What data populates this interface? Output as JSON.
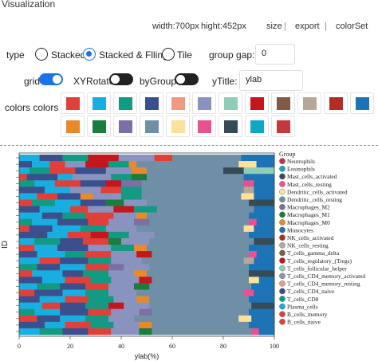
{
  "panel": {
    "title": "Visualization",
    "width_label": "width:700px",
    "height_label": "hight:452px",
    "size_label": "size",
    "export_label": "export",
    "colorset_label": "colorSet",
    "separator": "|"
  },
  "controls": {
    "type_label": "type",
    "type_options": [
      "Stacked",
      "Stacked & Flling",
      "Tile"
    ],
    "type_selected": "Stacked & Flling",
    "group_gap_label": "group gap:",
    "group_gap_value": "0",
    "grid_label": "grid",
    "grid_on": true,
    "xyrotate_label": "XYRotate",
    "xyrotate_on": false,
    "bygroup_label": "byGroup",
    "bygroup_on": false,
    "ytitle_label": "yTitle:",
    "ytitle_value": "ylab",
    "colors_label": "colors colors"
  },
  "palette": [
    "#e0403a",
    "#18aee0",
    "#139a82",
    "#3b4f8c",
    "#ef9a80",
    "#8a93c0",
    "#8fcdb8",
    "#c4161d",
    "#7e5c45",
    "#b6a899",
    "#b22d27",
    "#1c73b6",
    "#e8892b",
    "#1a7d3d",
    "#7c6fa6",
    "#6e8fa6",
    "#fde09a",
    "#e75391",
    "#354b57",
    "#10a7c2",
    "#c4393f"
  ],
  "chart_data": {
    "type": "bar",
    "orientation": "horizontal",
    "stacked": "percent",
    "xlabel": "ylab(%)",
    "ylabel": "ID",
    "xlim": [
      0,
      100
    ],
    "xticks": [
      "0",
      "20",
      "40",
      "60",
      "80",
      "100"
    ],
    "grid": false,
    "legend_title": "Group",
    "legend_position": "right",
    "series": [
      {
        "name": "Neutrophils",
        "color": "#c4393f"
      },
      {
        "name": "Eosinophils",
        "color": "#10a7c2"
      },
      {
        "name": "Mast_cells_activated",
        "color": "#354b57"
      },
      {
        "name": "Mast_cells_resting",
        "color": "#e75391"
      },
      {
        "name": "Dendritic_cells_activated",
        "color": "#fde09a"
      },
      {
        "name": "Dendritic_cells_resting",
        "color": "#6e8fa6"
      },
      {
        "name": "Macrophages_M2",
        "color": "#7c6fa6"
      },
      {
        "name": "Macrophages_M1",
        "color": "#1a7d3d"
      },
      {
        "name": "Macrophages_M0",
        "color": "#e8892b"
      },
      {
        "name": "Monocytes",
        "color": "#1c73b6"
      },
      {
        "name": "NK_cells_activated",
        "color": "#b22d27"
      },
      {
        "name": "NK_cells_resting",
        "color": "#b6a899"
      },
      {
        "name": "T_cells_gamma_delta",
        "color": "#7e5c45"
      },
      {
        "name": "T_cells_regulatory_(Tregs)",
        "color": "#c4161d"
      },
      {
        "name": "T_cells_follicular_helper",
        "color": "#8fcdb8"
      },
      {
        "name": "T_cells_CD4_memory_activated",
        "color": "#8a93c0"
      },
      {
        "name": "T_cells_CD4_memory_resting",
        "color": "#ef9a80"
      },
      {
        "name": "T_cells_CD4_naive",
        "color": "#3b4f8c"
      },
      {
        "name": "T_cells_CD8",
        "color": "#139a82"
      },
      {
        "name": "Plasma_cells",
        "color": "#18aee0"
      },
      {
        "name": "B_cells_memory",
        "color": "#e0403a"
      },
      {
        "name": "B_cells_naive",
        "color": "#e0403a"
      }
    ],
    "rows": [
      [
        [
          "#18aee0",
          8
        ],
        [
          "#3b4f8c",
          9
        ],
        [
          "#139a82",
          10
        ],
        [
          "#c4161d",
          12
        ],
        [
          "#8a93c0",
          14
        ],
        [
          "#e0403a",
          7
        ],
        [
          "#6e8fa6",
          27
        ],
        [
          "#1c73b6",
          13
        ]
      ],
      [
        [
          "#3b4f8c",
          5
        ],
        [
          "#18aee0",
          7
        ],
        [
          "#e0403a",
          6
        ],
        [
          "#8a93c0",
          8
        ],
        [
          "#c4161d",
          9
        ],
        [
          "#139a82",
          8
        ],
        [
          "#e8892b",
          3
        ],
        [
          "#6e8fa6",
          40
        ],
        [
          "#fde09a",
          7
        ],
        [
          "#1c73b6",
          7
        ]
      ],
      [
        [
          "#18aee0",
          4
        ],
        [
          "#139a82",
          8
        ],
        [
          "#e0403a",
          10
        ],
        [
          "#3b4f8c",
          12
        ],
        [
          "#8a93c0",
          10
        ],
        [
          "#e8892b",
          6
        ],
        [
          "#6e8fa6",
          30
        ],
        [
          "#354b57",
          8
        ],
        [
          "#8fcdb8",
          12
        ]
      ],
      [
        [
          "#e0403a",
          3
        ],
        [
          "#3b4f8c",
          12
        ],
        [
          "#18aee0",
          6
        ],
        [
          "#8a93c0",
          15
        ],
        [
          "#139a82",
          8
        ],
        [
          "#1a7d3d",
          6
        ],
        [
          "#6e8fa6",
          38
        ],
        [
          "#1c73b6",
          12
        ]
      ],
      [
        [
          "#139a82",
          6
        ],
        [
          "#18aee0",
          8
        ],
        [
          "#e0403a",
          10
        ],
        [
          "#3b4f8c",
          10
        ],
        [
          "#c4161d",
          6
        ],
        [
          "#7c6fa6",
          8
        ],
        [
          "#6e8fa6",
          40
        ],
        [
          "#e75391",
          4
        ],
        [
          "#1c73b6",
          8
        ]
      ],
      [
        [
          "#3b4f8c",
          10
        ],
        [
          "#18aee0",
          10
        ],
        [
          "#8a93c0",
          12
        ],
        [
          "#e0403a",
          8
        ],
        [
          "#139a82",
          8
        ],
        [
          "#6e8fa6",
          40
        ],
        [
          "#b6a899",
          4
        ],
        [
          "#1c73b6",
          8
        ]
      ],
      [
        [
          "#18aee0",
          7
        ],
        [
          "#e0403a",
          8
        ],
        [
          "#3b4f8c",
          9
        ],
        [
          "#e8892b",
          5
        ],
        [
          "#8a93c0",
          11
        ],
        [
          "#139a82",
          8
        ],
        [
          "#6e8fa6",
          39
        ],
        [
          "#fde09a",
          5
        ],
        [
          "#1c73b6",
          8
        ]
      ],
      [
        [
          "#e0403a",
          5
        ],
        [
          "#139a82",
          9
        ],
        [
          "#18aee0",
          10
        ],
        [
          "#3b4f8c",
          10
        ],
        [
          "#1a7d3d",
          7
        ],
        [
          "#8a93c0",
          9
        ],
        [
          "#6e8fa6",
          40
        ],
        [
          "#354b57",
          10
        ]
      ],
      [
        [
          "#3b4f8c",
          8
        ],
        [
          "#18aee0",
          12
        ],
        [
          "#e0403a",
          7
        ],
        [
          "#8a93c0",
          10
        ],
        [
          "#c4161d",
          8
        ],
        [
          "#139a82",
          9
        ],
        [
          "#6e8fa6",
          38
        ],
        [
          "#1c73b6",
          8
        ]
      ],
      [
        [
          "#18aee0",
          9
        ],
        [
          "#3b4f8c",
          8
        ],
        [
          "#139a82",
          9
        ],
        [
          "#e0403a",
          11
        ],
        [
          "#8a93c0",
          9
        ],
        [
          "#e8892b",
          4
        ],
        [
          "#6e8fa6",
          40
        ],
        [
          "#1c73b6",
          10
        ]
      ],
      [
        [
          "#139a82",
          5
        ],
        [
          "#18aee0",
          10
        ],
        [
          "#3b4f8c",
          12
        ],
        [
          "#e0403a",
          8
        ],
        [
          "#8a93c0",
          10
        ],
        [
          "#7c6fa6",
          6
        ],
        [
          "#6e8fa6",
          39
        ],
        [
          "#e75391",
          3
        ],
        [
          "#1c73b6",
          7
        ]
      ],
      [
        [
          "#e0403a",
          4
        ],
        [
          "#3b4f8c",
          9
        ],
        [
          "#18aee0",
          11
        ],
        [
          "#139a82",
          10
        ],
        [
          "#8a93c0",
          12
        ],
        [
          "#6e8fa6",
          42
        ],
        [
          "#fde09a",
          4
        ],
        [
          "#1c73b6",
          8
        ]
      ],
      [
        [
          "#3b4f8c",
          11
        ],
        [
          "#18aee0",
          8
        ],
        [
          "#e0403a",
          9
        ],
        [
          "#c4161d",
          7
        ],
        [
          "#139a82",
          8
        ],
        [
          "#8a93c0",
          10
        ],
        [
          "#6e8fa6",
          37
        ],
        [
          "#1c73b6",
          10
        ]
      ],
      [
        [
          "#18aee0",
          6
        ],
        [
          "#139a82",
          10
        ],
        [
          "#3b4f8c",
          9
        ],
        [
          "#e0403a",
          10
        ],
        [
          "#1a7d3d",
          5
        ],
        [
          "#8a93c0",
          11
        ],
        [
          "#6e8fa6",
          41
        ],
        [
          "#354b57",
          8
        ]
      ],
      [
        [
          "#e0403a",
          6
        ],
        [
          "#18aee0",
          9
        ],
        [
          "#3b4f8c",
          12
        ],
        [
          "#8a93c0",
          9
        ],
        [
          "#139a82",
          9
        ],
        [
          "#e8892b",
          5
        ],
        [
          "#6e8fa6",
          40
        ],
        [
          "#1c73b6",
          10
        ]
      ],
      [
        [
          "#3b4f8c",
          7
        ],
        [
          "#18aee0",
          11
        ],
        [
          "#139a82",
          8
        ],
        [
          "#e0403a",
          10
        ],
        [
          "#8a93c0",
          10
        ],
        [
          "#c4161d",
          6
        ],
        [
          "#6e8fa6",
          38
        ],
        [
          "#e75391",
          3
        ],
        [
          "#1c73b6",
          7
        ]
      ],
      [
        [
          "#18aee0",
          8
        ],
        [
          "#e0403a",
          8
        ],
        [
          "#3b4f8c",
          11
        ],
        [
          "#139a82",
          9
        ],
        [
          "#8a93c0",
          12
        ],
        [
          "#6e8fa6",
          40
        ],
        [
          "#b6a899",
          4
        ],
        [
          "#1c73b6",
          8
        ]
      ],
      [
        [
          "#139a82",
          7
        ],
        [
          "#3b4f8c",
          9
        ],
        [
          "#18aee0",
          10
        ],
        [
          "#e0403a",
          9
        ],
        [
          "#7c6fa6",
          6
        ],
        [
          "#8a93c0",
          10
        ],
        [
          "#6e8fa6",
          39
        ],
        [
          "#1c73b6",
          10
        ]
      ],
      [
        [
          "#e0403a",
          5
        ],
        [
          "#18aee0",
          12
        ],
        [
          "#3b4f8c",
          8
        ],
        [
          "#139a82",
          10
        ],
        [
          "#8a93c0",
          10
        ],
        [
          "#e8892b",
          5
        ],
        [
          "#6e8fa6",
          40
        ],
        [
          "#354b57",
          10
        ]
      ],
      [
        [
          "#3b4f8c",
          9
        ],
        [
          "#18aee0",
          9
        ],
        [
          "#e0403a",
          10
        ],
        [
          "#139a82",
          8
        ],
        [
          "#8a93c0",
          11
        ],
        [
          "#c4161d",
          5
        ],
        [
          "#6e8fa6",
          38
        ],
        [
          "#fde09a",
          4
        ],
        [
          "#1c73b6",
          6
        ]
      ],
      [
        [
          "#18aee0",
          7
        ],
        [
          "#139a82",
          9
        ],
        [
          "#3b4f8c",
          10
        ],
        [
          "#e0403a",
          9
        ],
        [
          "#8a93c0",
          10
        ],
        [
          "#1a7d3d",
          6
        ],
        [
          "#6e8fa6",
          40
        ],
        [
          "#1c73b6",
          9
        ]
      ],
      [
        [
          "#e0403a",
          6
        ],
        [
          "#3b4f8c",
          11
        ],
        [
          "#18aee0",
          9
        ],
        [
          "#139a82",
          9
        ],
        [
          "#8a93c0",
          11
        ],
        [
          "#6e8fa6",
          42
        ],
        [
          "#e75391",
          4
        ],
        [
          "#1c73b6",
          8
        ]
      ],
      [
        [
          "#3b4f8c",
          8
        ],
        [
          "#18aee0",
          10
        ],
        [
          "#e0403a",
          9
        ],
        [
          "#139a82",
          10
        ],
        [
          "#8a93c0",
          9
        ],
        [
          "#e8892b",
          5
        ],
        [
          "#6e8fa6",
          39
        ],
        [
          "#1c73b6",
          10
        ]
      ],
      [
        [
          "#18aee0",
          9
        ],
        [
          "#e0403a",
          7
        ],
        [
          "#3b4f8c",
          10
        ],
        [
          "#139a82",
          9
        ],
        [
          "#c4161d",
          6
        ],
        [
          "#8a93c0",
          10
        ],
        [
          "#6e8fa6",
          40
        ],
        [
          "#354b57",
          9
        ]
      ],
      [
        [
          "#139a82",
          6
        ],
        [
          "#18aee0",
          10
        ],
        [
          "#3b4f8c",
          11
        ],
        [
          "#e0403a",
          9
        ],
        [
          "#8a93c0",
          11
        ],
        [
          "#7c6fa6",
          5
        ],
        [
          "#6e8fa6",
          38
        ],
        [
          "#1c73b6",
          10
        ]
      ],
      [
        [
          "#e0403a",
          7
        ],
        [
          "#3b4f8c",
          9
        ],
        [
          "#18aee0",
          10
        ],
        [
          "#139a82",
          9
        ],
        [
          "#8a93c0",
          10
        ],
        [
          "#6e8fa6",
          41
        ],
        [
          "#fde09a",
          5
        ],
        [
          "#1c73b6",
          9
        ]
      ],
      [
        [
          "#3b4f8c",
          10
        ],
        [
          "#18aee0",
          8
        ],
        [
          "#e0403a",
          10
        ],
        [
          "#139a82",
          9
        ],
        [
          "#8a93c0",
          10
        ],
        [
          "#e8892b",
          5
        ],
        [
          "#6e8fa6",
          38
        ],
        [
          "#1c73b6",
          10
        ]
      ],
      [
        [
          "#18aee0",
          8
        ],
        [
          "#139a82",
          9
        ],
        [
          "#3b4f8c",
          10
        ],
        [
          "#e0403a",
          9
        ],
        [
          "#8a93c0",
          11
        ],
        [
          "#1a7d3d",
          5
        ],
        [
          "#6e8fa6",
          39
        ],
        [
          "#e75391",
          3
        ],
        [
          "#1c73b6",
          6
        ]
      ]
    ]
  }
}
